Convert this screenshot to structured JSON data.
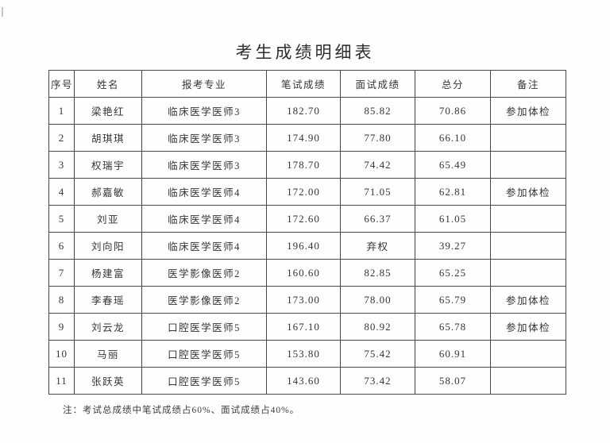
{
  "page": {
    "title": "考生成绩明细表",
    "note": "注：考试总成绩中笔试成绩占60%、面试成绩占40%。"
  },
  "table": {
    "headers": [
      "序号",
      "姓名",
      "报考专业",
      "笔试成绩",
      "面试成绩",
      "总分",
      "备注"
    ],
    "rows": [
      [
        "1",
        "梁艳红",
        "临床医学医师3",
        "182.70",
        "85.82",
        "70.86",
        "参加体检"
      ],
      [
        "2",
        "胡琪琪",
        "临床医学医师3",
        "174.90",
        "77.80",
        "66.10",
        ""
      ],
      [
        "3",
        "权瑞宇",
        "临床医学医师3",
        "178.70",
        "74.42",
        "65.49",
        ""
      ],
      [
        "4",
        "郝嘉敏",
        "临床医学医师4",
        "172.00",
        "71.05",
        "62.81",
        "参加体检"
      ],
      [
        "5",
        "刘亚",
        "临床医学医师4",
        "172.60",
        "66.37",
        "61.05",
        ""
      ],
      [
        "6",
        "刘向阳",
        "临床医学医师4",
        "196.40",
        "弃权",
        "39.27",
        ""
      ],
      [
        "7",
        "杨建富",
        "医学影像医师2",
        "160.60",
        "82.85",
        "65.25",
        ""
      ],
      [
        "8",
        "李春瑶",
        "医学影像医师2",
        "173.00",
        "78.00",
        "65.79",
        "参加体检"
      ],
      [
        "9",
        "刘云龙",
        "口腔医学医师5",
        "167.10",
        "80.92",
        "65.78",
        "参加体检"
      ],
      [
        "10",
        "马丽",
        "口腔医学医师5",
        "153.80",
        "75.42",
        "60.91",
        ""
      ],
      [
        "11",
        "张跃英",
        "口腔医学医师5",
        "143.60",
        "73.42",
        "58.07",
        ""
      ]
    ]
  },
  "colors": {
    "page_background": "#fefefe",
    "text": "#353535",
    "border": "#474747"
  }
}
